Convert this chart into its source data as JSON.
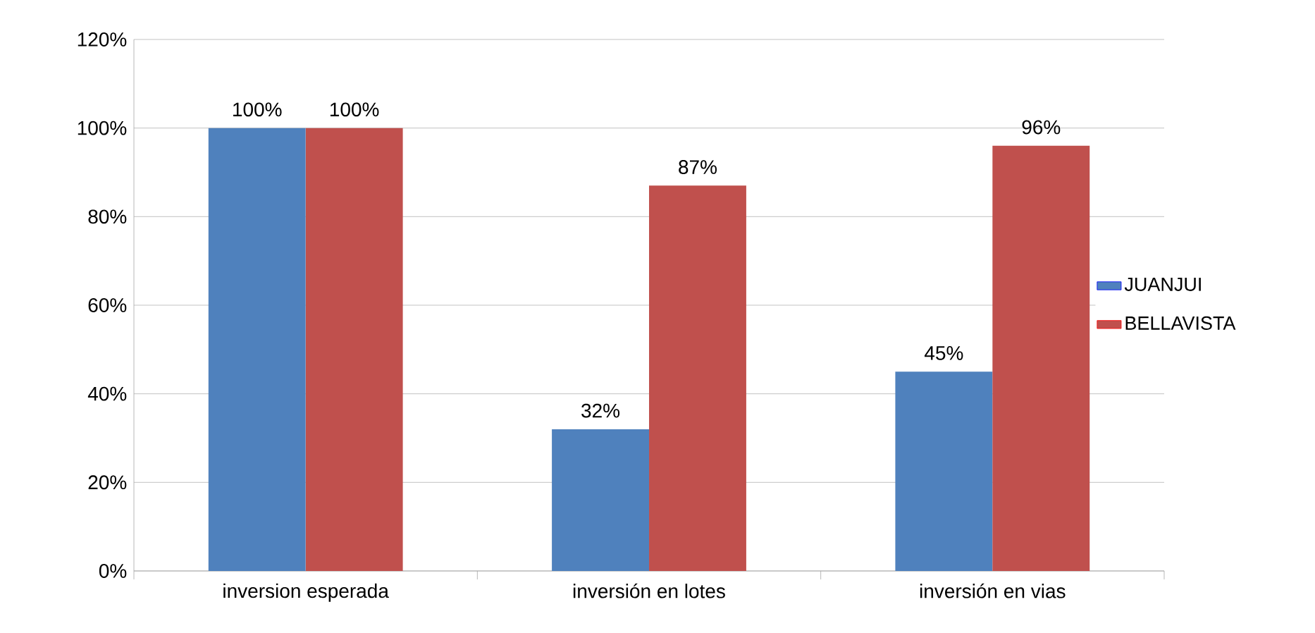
{
  "chart_data": {
    "type": "bar",
    "categories": [
      "inversion esperada",
      "inversión en lotes",
      "inversión en vias"
    ],
    "series": [
      {
        "name": "JUANJUI",
        "color": "#4f81bd",
        "values": [
          100,
          32,
          45
        ],
        "value_labels": [
          "100%",
          "32%",
          "45%"
        ]
      },
      {
        "name": "BELLAVISTA",
        "color": "#c0504d",
        "values": [
          100,
          87,
          96
        ],
        "value_labels": [
          "100%",
          "87%",
          "96%"
        ]
      }
    ],
    "ylim": [
      0,
      120
    ],
    "yticks": [
      {
        "value": 0,
        "label": "0%"
      },
      {
        "value": 20,
        "label": "20%"
      },
      {
        "value": 40,
        "label": "40%"
      },
      {
        "value": 60,
        "label": "60%"
      },
      {
        "value": 80,
        "label": "80%"
      },
      {
        "value": 100,
        "label": "100%"
      },
      {
        "value": 120,
        "label": "120%"
      }
    ],
    "grid": "y",
    "legend": "right"
  }
}
